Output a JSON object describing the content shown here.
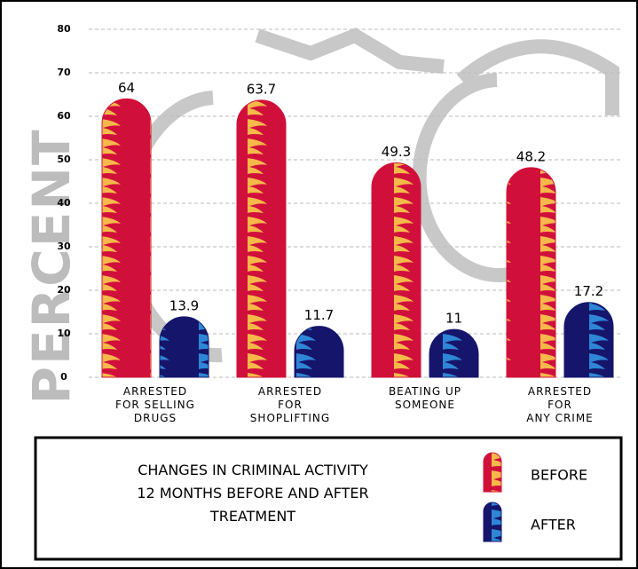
{
  "chart_data": {
    "type": "bar",
    "title": "CHANGES IN CRIMINAL ACTIVITY\n12 MONTHS BEFORE AND AFTER\nTREATMENT",
    "ylabel": "PERCENT",
    "categories": [
      "ARRESTED\nFOR SELLING\nDRUGS",
      "ARRESTED\nFOR\nSHOPLIFTING",
      "BEATING UP\nSOMEONE",
      "ARRESTED\nFOR\nANY CRIME"
    ],
    "series": [
      {
        "name": "BEFORE",
        "color": "#d0103a",
        "stripe": "#f7b84a",
        "values": [
          64,
          63.7,
          49.3,
          48.2
        ]
      },
      {
        "name": "AFTER",
        "color": "#15156b",
        "stripe": "#2f86d6",
        "values": [
          13.9,
          11.7,
          11,
          17.2
        ]
      }
    ],
    "ylim": [
      0,
      80
    ],
    "yticks": [
      0,
      10,
      20,
      30,
      40,
      50,
      60,
      70,
      80
    ],
    "grid": true
  }
}
